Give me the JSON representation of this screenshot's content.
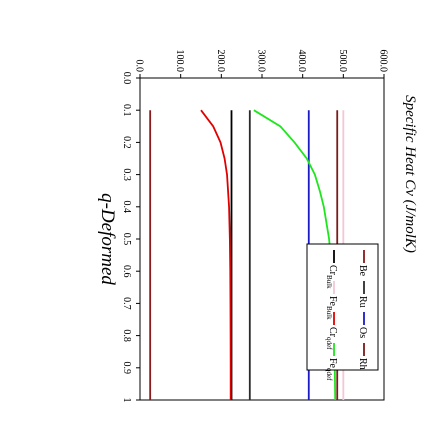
{
  "chart_data": {
    "type": "line",
    "title": "",
    "xlabel": "q-Deformed",
    "ylabel": "Specific Heat Cv (J/molK)",
    "xlim": [
      0.0,
      1.0
    ],
    "ylim": [
      0.0,
      600.0
    ],
    "x_ticks": [
      "0.0",
      "0.1",
      "0.2",
      "0.3",
      "0.4",
      "0.5",
      "0.6",
      "0.7",
      "0.8",
      "0.9",
      "1"
    ],
    "y_ticks": [
      "0.0",
      "100.0",
      "200.0",
      "300.0",
      "400.0",
      "500.0",
      "600.0"
    ],
    "grid": false,
    "legend_position": "top-right",
    "orientation": "rotated 90° clockwise",
    "series": [
      {
        "name": "Be",
        "sub": "",
        "color": "#8b1a1a",
        "x": [
          0.1,
          1.0
        ],
        "y": [
          25,
          25
        ]
      },
      {
        "name": "Ru",
        "sub": "",
        "color": "#2b2b2b",
        "x": [
          0.1,
          1.0
        ],
        "y": [
          270,
          270
        ]
      },
      {
        "name": "Os",
        "sub": "",
        "color": "#1a1ac8",
        "x": [
          0.1,
          1.0
        ],
        "y": [
          415,
          415
        ]
      },
      {
        "name": "Rh",
        "sub": "",
        "color": "#7a1a1a",
        "x": [
          0.1,
          1.0
        ],
        "y": [
          485,
          485
        ]
      },
      {
        "name": "Cr",
        "sub": "Bulk",
        "color": "#000000",
        "x": [
          0.1,
          1.0
        ],
        "y": [
          225,
          225
        ]
      },
      {
        "name": "Fe",
        "sub": "Bulk",
        "color": "#f4c6d6",
        "x": [
          0.1,
          1.0
        ],
        "y": [
          500,
          500
        ]
      },
      {
        "name": "Cr",
        "sub": "qdef",
        "color": "#e00000",
        "x": [
          0.1,
          0.15,
          0.2,
          0.25,
          0.3,
          0.4,
          0.5,
          0.6,
          0.7,
          0.8,
          0.9,
          1.0
        ],
        "y": [
          150,
          180,
          198,
          208,
          214,
          219,
          221,
          222,
          222.5,
          222.8,
          223,
          223
        ]
      },
      {
        "name": "Fe",
        "sub": "qdef",
        "color": "#1ee61e",
        "x": [
          0.1,
          0.15,
          0.2,
          0.25,
          0.3,
          0.35,
          0.4,
          0.5,
          0.6,
          0.7,
          0.8,
          0.9,
          1.0
        ],
        "y": [
          280,
          345,
          380,
          410,
          430,
          442,
          452,
          465,
          472,
          476,
          478,
          479,
          480
        ]
      }
    ]
  }
}
